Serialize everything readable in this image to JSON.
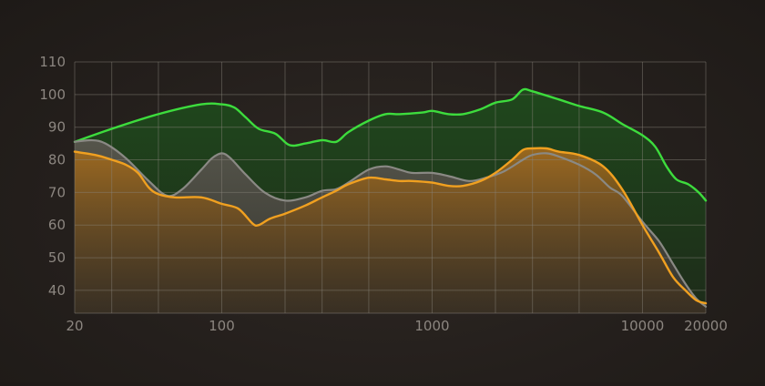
{
  "chart_data": {
    "type": "area",
    "title": "",
    "xlabel": "",
    "ylabel": "",
    "x_scale": "log",
    "xlim": [
      20,
      20000
    ],
    "ylim": [
      33,
      110
    ],
    "grid": true,
    "x_tick_labels": [
      {
        "value": 20,
        "label": "20"
      },
      {
        "value": 100,
        "label": "100"
      },
      {
        "value": 1000,
        "label": "1000"
      },
      {
        "value": 10000,
        "label": "10000"
      },
      {
        "value": 20000,
        "label": "20000"
      }
    ],
    "y_tick_labels": [
      {
        "value": 40,
        "label": "40"
      },
      {
        "value": 50,
        "label": "50"
      },
      {
        "value": 60,
        "label": "60"
      },
      {
        "value": 70,
        "label": "70"
      },
      {
        "value": 80,
        "label": "80"
      },
      {
        "value": 90,
        "label": "90"
      },
      {
        "value": 100,
        "label": "100"
      },
      {
        "value": 110,
        "label": "110"
      }
    ],
    "series": [
      {
        "color": "#3ddc3d",
        "fill": "#1e3a1c",
        "points": [
          [
            20,
            85.5
          ],
          [
            30,
            89.5
          ],
          [
            50,
            94
          ],
          [
            80,
            97
          ],
          [
            100,
            97
          ],
          [
            115,
            96
          ],
          [
            130,
            93
          ],
          [
            150,
            89.5
          ],
          [
            180,
            88
          ],
          [
            210,
            84.5
          ],
          [
            250,
            85
          ],
          [
            300,
            86
          ],
          [
            350,
            85.5
          ],
          [
            400,
            88.5
          ],
          [
            500,
            92
          ],
          [
            600,
            94
          ],
          [
            700,
            94
          ],
          [
            900,
            94.5
          ],
          [
            1000,
            95
          ],
          [
            1200,
            94
          ],
          [
            1400,
            94
          ],
          [
            1700,
            95.5
          ],
          [
            2000,
            97.5
          ],
          [
            2400,
            98.5
          ],
          [
            2700,
            101.5
          ],
          [
            3000,
            101
          ],
          [
            4000,
            98.5
          ],
          [
            5000,
            96.5
          ],
          [
            6500,
            94.5
          ],
          [
            8000,
            91
          ],
          [
            10000,
            87.5
          ],
          [
            11500,
            84
          ],
          [
            13000,
            78
          ],
          [
            14500,
            74
          ],
          [
            16500,
            72.5
          ],
          [
            18500,
            70
          ],
          [
            20000,
            67.5
          ]
        ]
      },
      {
        "color": "#8a8984",
        "fill": "#4a4641",
        "points": [
          [
            20,
            85.5
          ],
          [
            24,
            86
          ],
          [
            28,
            85
          ],
          [
            35,
            80.5
          ],
          [
            45,
            73.5
          ],
          [
            55,
            69
          ],
          [
            65,
            71
          ],
          [
            80,
            77
          ],
          [
            90,
            80.5
          ],
          [
            100,
            82
          ],
          [
            110,
            80.5
          ],
          [
            130,
            75.5
          ],
          [
            160,
            70
          ],
          [
            200,
            67.5
          ],
          [
            250,
            68.5
          ],
          [
            300,
            70.5
          ],
          [
            350,
            71
          ],
          [
            400,
            73
          ],
          [
            500,
            77
          ],
          [
            600,
            78
          ],
          [
            700,
            77
          ],
          [
            800,
            76
          ],
          [
            1000,
            76
          ],
          [
            1200,
            75
          ],
          [
            1500,
            73.5
          ],
          [
            1800,
            74.5
          ],
          [
            2200,
            76.5
          ],
          [
            2700,
            80
          ],
          [
            3000,
            81.5
          ],
          [
            3500,
            82
          ],
          [
            4000,
            81
          ],
          [
            5000,
            78.5
          ],
          [
            6000,
            75.5
          ],
          [
            7000,
            71.5
          ],
          [
            8000,
            69
          ],
          [
            10000,
            61
          ],
          [
            12000,
            55
          ],
          [
            14000,
            48
          ],
          [
            16000,
            42
          ],
          [
            18000,
            37.5
          ],
          [
            20000,
            35
          ]
        ]
      },
      {
        "color": "#f0a020",
        "fill": "#7a5218",
        "points": [
          [
            20,
            82.5
          ],
          [
            25,
            81.5
          ],
          [
            30,
            80
          ],
          [
            35,
            78.5
          ],
          [
            40,
            76
          ],
          [
            45,
            71.5
          ],
          [
            50,
            69.5
          ],
          [
            60,
            68.5
          ],
          [
            80,
            68.5
          ],
          [
            100,
            66.5
          ],
          [
            120,
            65
          ],
          [
            140,
            60.5
          ],
          [
            150,
            60
          ],
          [
            170,
            62
          ],
          [
            200,
            63.5
          ],
          [
            250,
            66
          ],
          [
            300,
            68.5
          ],
          [
            350,
            70.5
          ],
          [
            400,
            72.5
          ],
          [
            500,
            74.5
          ],
          [
            600,
            74
          ],
          [
            700,
            73.5
          ],
          [
            800,
            73.5
          ],
          [
            1000,
            73
          ],
          [
            1200,
            72
          ],
          [
            1400,
            72
          ],
          [
            1700,
            73.5
          ],
          [
            2000,
            76
          ],
          [
            2400,
            80
          ],
          [
            2700,
            83
          ],
          [
            3000,
            83.5
          ],
          [
            3500,
            83.5
          ],
          [
            4000,
            82.5
          ],
          [
            5000,
            81.5
          ],
          [
            6500,
            78
          ],
          [
            8000,
            71
          ],
          [
            10000,
            60
          ],
          [
            12000,
            51.5
          ],
          [
            14000,
            44
          ],
          [
            16000,
            40
          ],
          [
            18000,
            37
          ],
          [
            20000,
            36
          ]
        ]
      }
    ]
  }
}
